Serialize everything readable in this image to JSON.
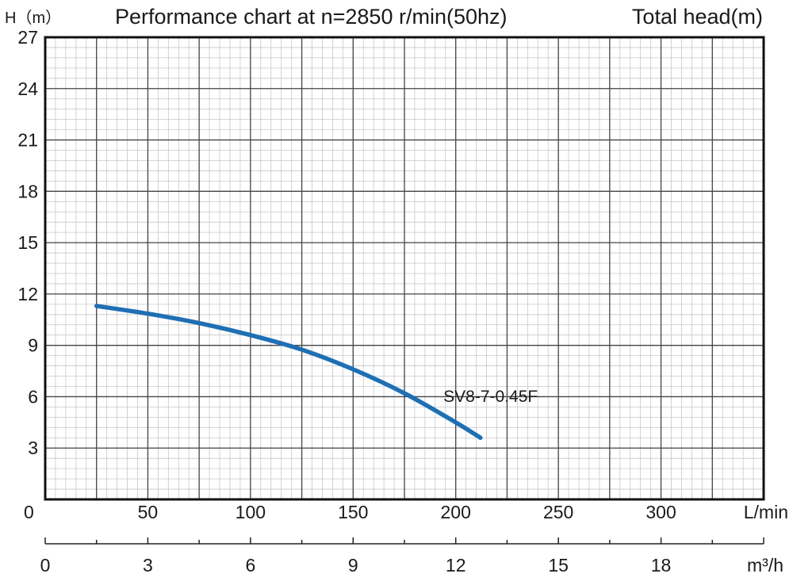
{
  "chart_data": {
    "type": "line",
    "title": "Performance chart at n=2850 r/min(50hz)",
    "subtitle": "Total head(m)",
    "ylabel": "H（m）",
    "xlabel": "L/min",
    "x2label": "m³/h",
    "xlim": [
      0,
      350
    ],
    "ylim": [
      0,
      27
    ],
    "x2lim": [
      0,
      21
    ],
    "grid": true,
    "y_ticks": [
      0,
      3,
      6,
      9,
      12,
      15,
      18,
      21,
      24,
      27
    ],
    "x_ticks": [
      50,
      100,
      150,
      200,
      250,
      300
    ],
    "x2_ticks": [
      0,
      3,
      6,
      9,
      12,
      15,
      18
    ],
    "y_minor_step": 0.6,
    "x_minor_step": 5,
    "series": [
      {
        "name": "SV8-7-0.45F",
        "color": "#1f6fb4",
        "x": [
          25,
          50,
          75,
          100,
          125,
          150,
          175,
          200,
          212
        ],
        "y": [
          11.3,
          10.85,
          10.3,
          9.6,
          8.75,
          7.6,
          6.2,
          4.5,
          3.6
        ]
      }
    ]
  }
}
